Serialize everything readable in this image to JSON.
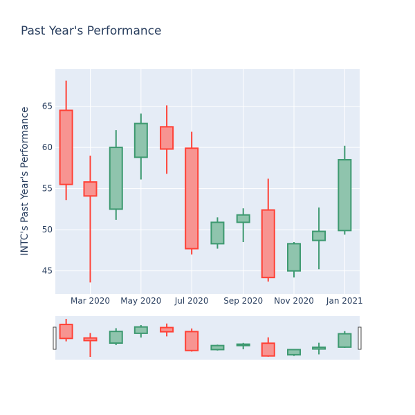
{
  "chart_data": {
    "type": "candlestick",
    "title": "Past Year's Performance",
    "ylabel": "INTC's Past Year's Performance",
    "xlabel": "",
    "ylim": [
      42.2,
      69.5
    ],
    "yticks": [
      45,
      50,
      55,
      60,
      65
    ],
    "xlim": [
      "2020-01-19",
      "2021-01-19"
    ],
    "xticks": [
      {
        "date": "2020-03-01",
        "label": "Mar 2020"
      },
      {
        "date": "2020-05-01",
        "label": "May 2020"
      },
      {
        "date": "2020-07-01",
        "label": "Jul 2020"
      },
      {
        "date": "2020-09-01",
        "label": "Sep 2020"
      },
      {
        "date": "2020-11-01",
        "label": "Nov 2020"
      },
      {
        "date": "2021-01-01",
        "label": "Jan 2021"
      }
    ],
    "grid": true,
    "rangeslider": true,
    "colors": {
      "increasing_line": "#3d9970",
      "increasing_fill": "#8fc4ad",
      "decreasing_line": "#ff4136",
      "decreasing_fill": "#f79491",
      "plot_bg": "#e5ecf6",
      "grid": "#ffffff",
      "text": "#2a3f5f"
    },
    "candles": [
      {
        "date": "2020-02-01",
        "open": 64.5,
        "high": 68.1,
        "low": 53.6,
        "close": 55.5
      },
      {
        "date": "2020-03-01",
        "open": 55.8,
        "high": 59.0,
        "low": 43.6,
        "close": 54.1
      },
      {
        "date": "2020-04-01",
        "open": 52.5,
        "high": 62.1,
        "low": 51.2,
        "close": 60.0
      },
      {
        "date": "2020-05-01",
        "open": 58.8,
        "high": 64.1,
        "low": 56.1,
        "close": 62.9
      },
      {
        "date": "2020-06-01",
        "open": 62.5,
        "high": 65.1,
        "low": 56.8,
        "close": 59.8
      },
      {
        "date": "2020-07-01",
        "open": 59.9,
        "high": 61.9,
        "low": 47.0,
        "close": 47.7
      },
      {
        "date": "2020-08-01",
        "open": 48.3,
        "high": 51.5,
        "low": 47.7,
        "close": 50.9
      },
      {
        "date": "2020-09-01",
        "open": 50.9,
        "high": 52.6,
        "low": 48.5,
        "close": 51.8
      },
      {
        "date": "2020-10-01",
        "open": 52.4,
        "high": 56.2,
        "low": 43.7,
        "close": 44.2
      },
      {
        "date": "2020-11-01",
        "open": 45.0,
        "high": 48.5,
        "low": 44.2,
        "close": 48.3
      },
      {
        "date": "2020-12-01",
        "open": 48.7,
        "high": 52.7,
        "low": 45.2,
        "close": 49.8
      },
      {
        "date": "2021-01-01",
        "open": 49.9,
        "high": 60.2,
        "low": 49.4,
        "close": 58.5
      }
    ]
  }
}
